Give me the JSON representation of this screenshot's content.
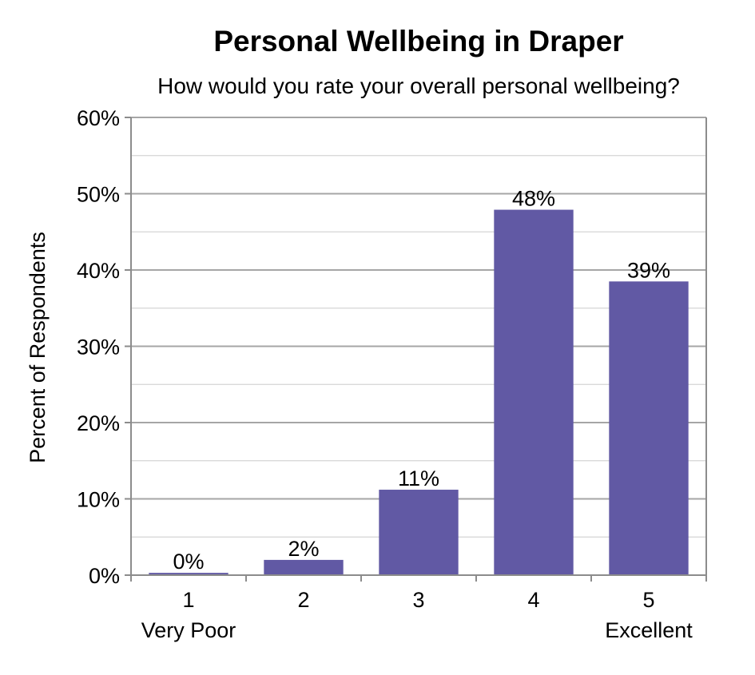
{
  "chart_data": {
    "type": "bar",
    "title": "Personal Wellbeing in Draper",
    "subtitle": "How would you rate your overall personal wellbeing?",
    "ylabel": "Percent of Respondents",
    "xlabel": "",
    "categories": [
      "1",
      "2",
      "3",
      "4",
      "5"
    ],
    "category_sublabels": [
      "Very Poor",
      "",
      "",
      "",
      "Excellent"
    ],
    "values": [
      0.3,
      2,
      11.2,
      47.9,
      38.5
    ],
    "data_labels": [
      "0%",
      "2%",
      "11%",
      "48%",
      "39%"
    ],
    "ylim": [
      0,
      60
    ],
    "yticks": [
      0,
      10,
      20,
      30,
      40,
      50,
      60
    ],
    "ytick_labels": [
      "0%",
      "10%",
      "20%",
      "30%",
      "40%",
      "50%",
      "60%"
    ],
    "minor_gridlines": [
      5,
      15,
      25,
      35,
      45,
      55
    ],
    "grid": true,
    "bar_color": "#6159a4",
    "major_grid_color": "#a6a6a6",
    "minor_grid_color": "#d4d4d4",
    "axis_color": "#8c8c8c"
  }
}
